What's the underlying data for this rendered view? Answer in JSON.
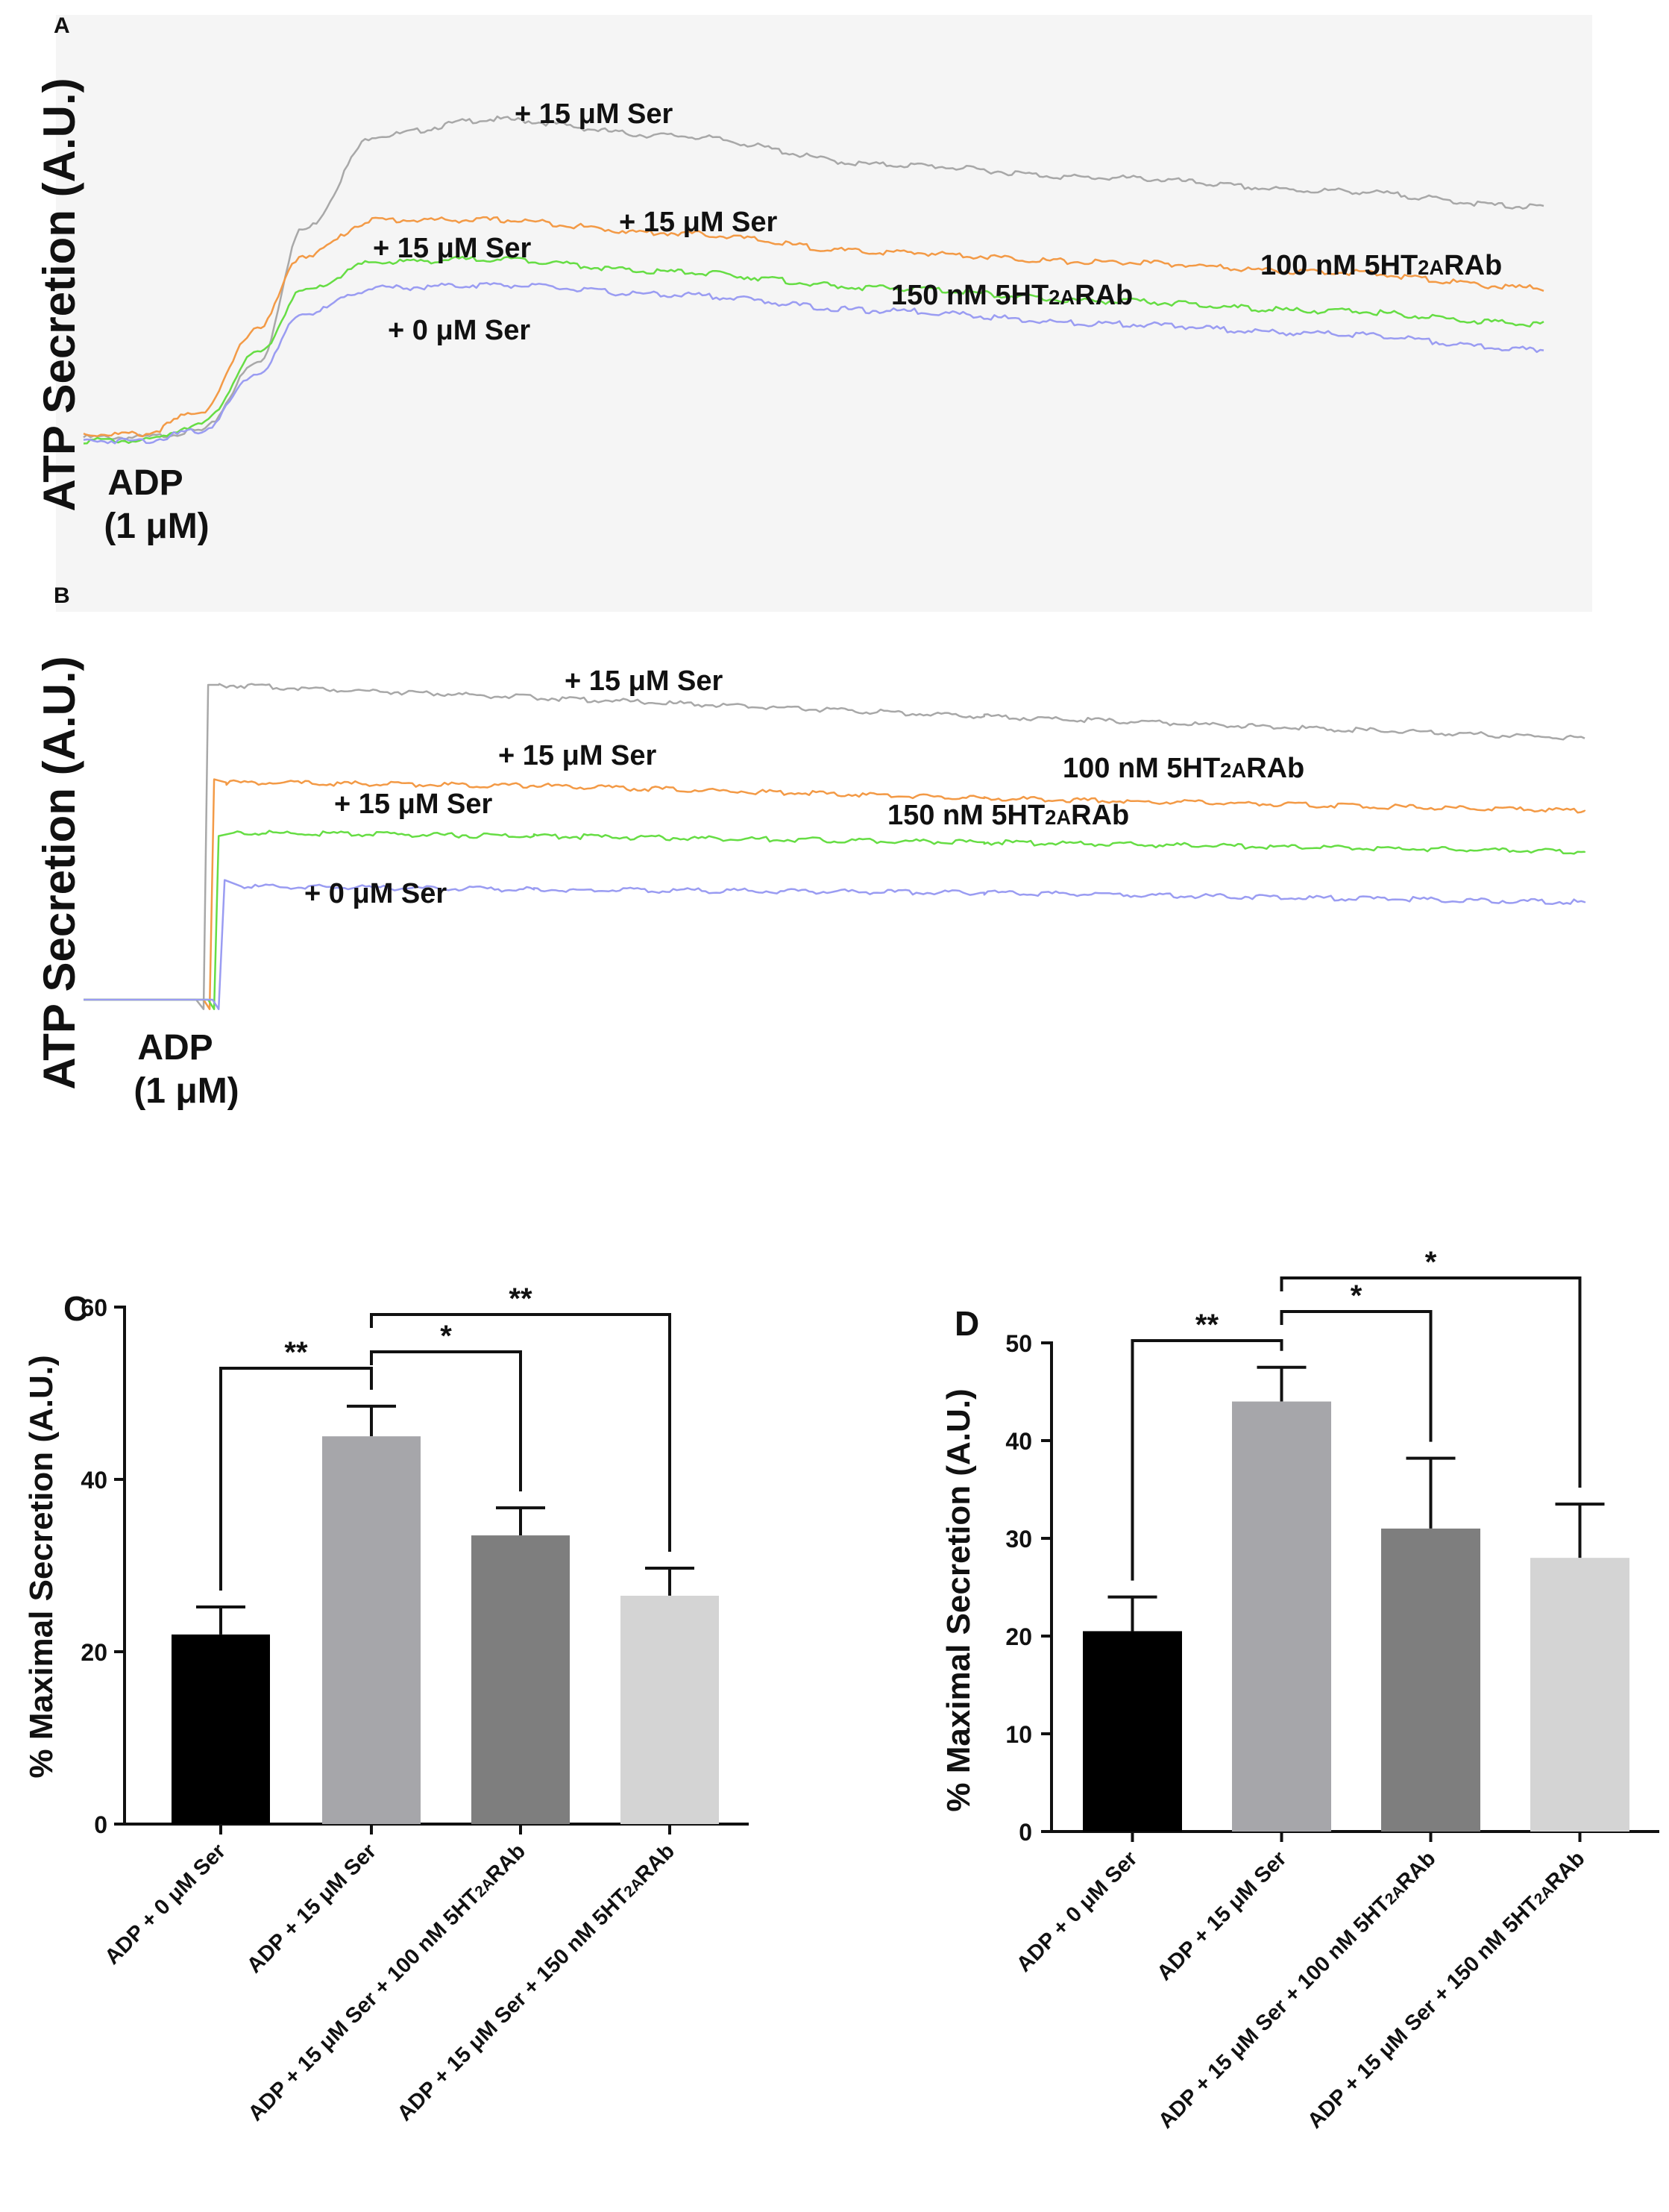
{
  "chart_data": [
    {
      "panel": "A",
      "type": "line",
      "ylabel": "ATP Secretion (A.U.)",
      "stimulus": [
        "ADP",
        "(1 μM)"
      ],
      "series": [
        {
          "label": "+ 15 μM Ser",
          "color": "#a8a8a8",
          "x": [
            0,
            4,
            8,
            12,
            15,
            20,
            28,
            40,
            55,
            70,
            85,
            100
          ],
          "y": [
            2,
            2,
            4,
            25,
            66,
            95,
            100,
            95,
            86,
            82,
            78,
            73
          ]
        },
        {
          "label": "+ 15 μM Ser",
          "extra": "100 nM 5HT2ARAb",
          "color": "#f39a46",
          "x": [
            0,
            4,
            8,
            12,
            15,
            20,
            28,
            40,
            55,
            70,
            85,
            100
          ],
          "y": [
            3,
            3,
            10,
            36,
            58,
            69,
            69,
            65,
            59,
            56,
            53,
            48
          ]
        },
        {
          "label": "+ 15 μM Ser",
          "extra": "150 nM 5HT2ARAb",
          "color": "#66dd44",
          "x": [
            0,
            4,
            8,
            12,
            15,
            20,
            28,
            40,
            55,
            70,
            85,
            100
          ],
          "y": [
            1,
            1,
            6,
            28,
            47,
            56,
            57,
            53,
            48,
            44,
            41,
            37
          ]
        },
        {
          "label": "+ 0 μM Ser",
          "color": "#9a9cf2",
          "x": [
            0,
            4,
            8,
            12,
            15,
            20,
            28,
            40,
            55,
            70,
            85,
            100
          ],
          "y": [
            1,
            1,
            4,
            22,
            40,
            48,
            49,
            46,
            41,
            37,
            34,
            29
          ]
        }
      ]
    },
    {
      "panel": "B",
      "type": "line",
      "ylabel": "ATP Secretion (A.U.)",
      "stimulus": [
        "ADP",
        "(1 μM)"
      ],
      "series": [
        {
          "label": "+ 15 μM Ser",
          "color": "#a8a8a8",
          "x": [
            0,
            7.5,
            8.0,
            8.3,
            9,
            30,
            60,
            100
          ],
          "y": [
            0,
            0,
            -3,
            100,
            100,
            96,
            90,
            83
          ]
        },
        {
          "label": "+ 15 μM Ser",
          "extra": "100 nM 5HT2ARAb",
          "color": "#f39a46",
          "x": [
            0,
            8.0,
            8.4,
            8.7,
            9.5,
            30,
            60,
            100
          ],
          "y": [
            0,
            0,
            -3,
            70,
            69,
            68,
            64,
            60
          ]
        },
        {
          "label": "+ 15 μM Ser",
          "extra": "150 nM 5HT2ARAb",
          "color": "#66dd44",
          "x": [
            0,
            8.3,
            8.7,
            9.0,
            10,
            30,
            60,
            100
          ],
          "y": [
            0,
            0,
            -3,
            52,
            53,
            52,
            50,
            47
          ]
        },
        {
          "label": "+ 0 μM Ser",
          "color": "#9a9cf2",
          "x": [
            0,
            8.6,
            9.0,
            9.4,
            10.5,
            30,
            60,
            100
          ],
          "y": [
            0,
            0,
            -3,
            38,
            36,
            35,
            34,
            31
          ]
        }
      ]
    },
    {
      "panel": "C",
      "type": "bar",
      "ylabel": "% Maximal Secretion (A.U.)",
      "ylim": [
        0,
        60
      ],
      "yticks": [
        0,
        20,
        40,
        60
      ],
      "categories": [
        "ADP + 0 μM Ser",
        "ADP + 15 μM Ser",
        "ADP + 15 μM Ser + 100 nM 5HT2ARAb",
        "ADP + 15 μM Ser + 150 nM 5HT2ARAb"
      ],
      "values": [
        22,
        45,
        33.5,
        26.5
      ],
      "errors": [
        3.2,
        3.5,
        3.2,
        3.2
      ],
      "colors": [
        "#000000",
        "#a6a6aa",
        "#7e7e7e",
        "#d4d4d4"
      ],
      "significance": [
        {
          "from": 0,
          "to": 1,
          "label": "**"
        },
        {
          "from": 1,
          "to": 2,
          "label": "*"
        },
        {
          "from": 1,
          "to": 3,
          "label": "**"
        }
      ]
    },
    {
      "panel": "D",
      "type": "bar",
      "ylabel": "% Maximal Secretion (A.U.)",
      "ylim": [
        0,
        50
      ],
      "yticks": [
        0,
        10,
        20,
        30,
        40,
        50
      ],
      "categories": [
        "ADP + 0 μM Ser",
        "ADP + 15 μM Ser",
        "ADP + 15 μM Ser + 100 nM 5HT2ARAb",
        "ADP + 15 μM Ser + 150 nM 5HT2ARAb"
      ],
      "values": [
        20.5,
        44,
        31,
        28
      ],
      "errors": [
        3.5,
        3.5,
        7.2,
        5.5
      ],
      "colors": [
        "#000000",
        "#a6a6aa",
        "#7e7e7e",
        "#d4d4d4"
      ],
      "significance": [
        {
          "from": 0,
          "to": 1,
          "label": "**"
        },
        {
          "from": 1,
          "to": 2,
          "label": "*"
        },
        {
          "from": 1,
          "to": 3,
          "label": "*"
        }
      ]
    }
  ]
}
